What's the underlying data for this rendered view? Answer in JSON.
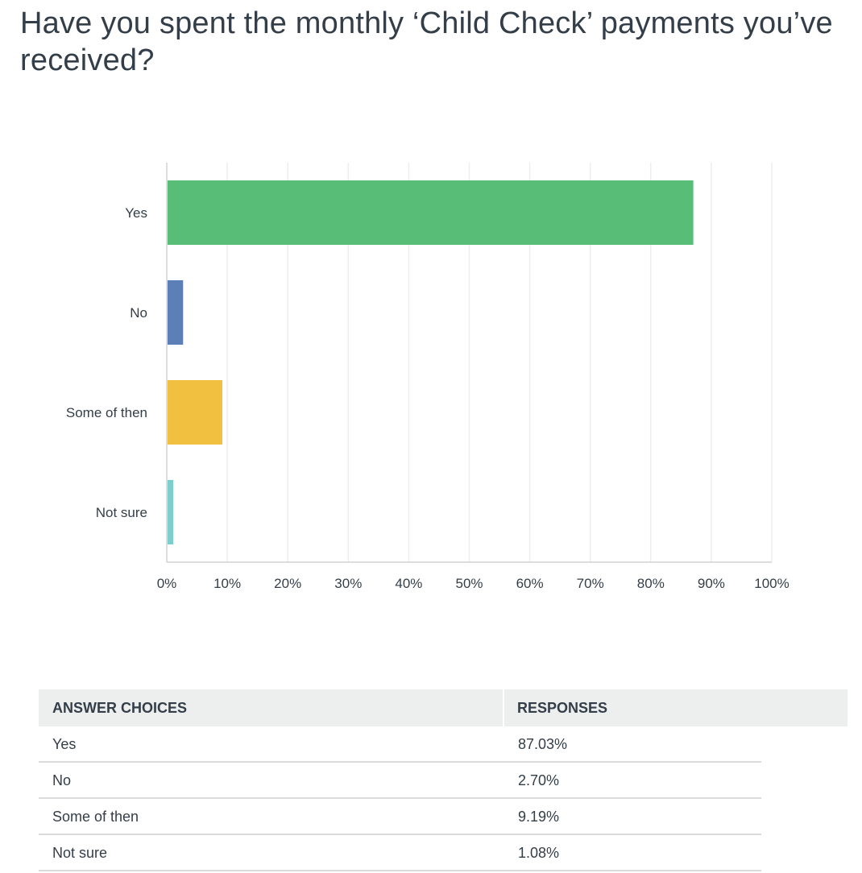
{
  "question": {
    "title": "Have you spent the monthly ‘Child Check’ payments you’ve received?"
  },
  "chart_data": {
    "type": "bar",
    "orientation": "horizontal",
    "categories": [
      "Yes",
      "No",
      "Some of then",
      "Not sure"
    ],
    "values": [
      87.03,
      2.7,
      9.19,
      1.08
    ],
    "colors": [
      "#57bd77",
      "#5b7fb6",
      "#f1c040",
      "#7dcfcf"
    ],
    "xlim": [
      0,
      100
    ],
    "x_ticks": [
      "0%",
      "10%",
      "20%",
      "30%",
      "40%",
      "50%",
      "60%",
      "70%",
      "80%",
      "90%",
      "100%"
    ],
    "grid": true,
    "legend": "none"
  },
  "table": {
    "headers": {
      "choice": "ANSWER CHOICES",
      "responses": "RESPONSES"
    },
    "rows": [
      {
        "choice": "Yes",
        "response": "87.03%"
      },
      {
        "choice": "No",
        "response": "2.70%"
      },
      {
        "choice": "Some of then",
        "response": "9.19%"
      },
      {
        "choice": "Not sure",
        "response": "1.08%"
      }
    ]
  }
}
